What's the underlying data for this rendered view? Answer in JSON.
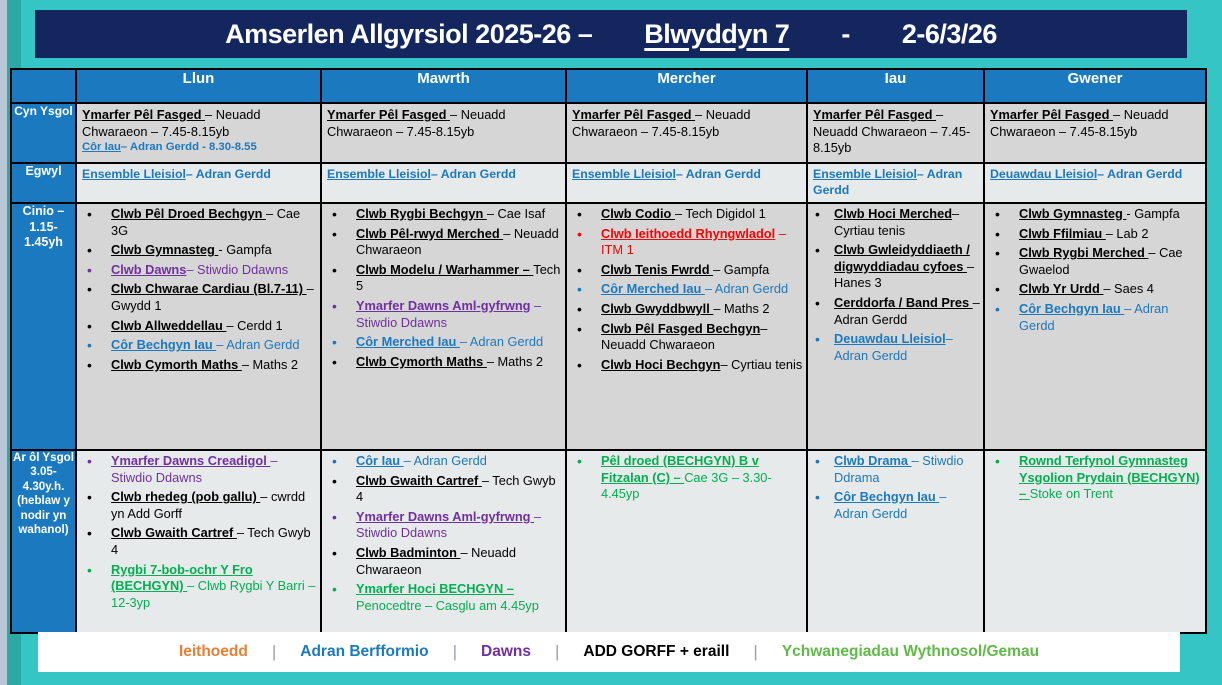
{
  "title": {
    "main": "Amserlen Allgyrsiol 2025-26 –",
    "group": "Blwyddyn 7",
    "separator": "-",
    "week": "2-6/3/26"
  },
  "days": [
    "Llun",
    "Mawrth",
    "Mercher",
    "Iau",
    "Gwener"
  ],
  "colors": {
    "black": "#000000",
    "blue": "#1b79c0",
    "purple": "#7030a0",
    "red": "#ff0000",
    "green": "#00b050",
    "header_blue": "#1b79c0",
    "title_navy": "#13265e",
    "teal_background": "#35c5c5",
    "band_dark": "#d6d6d6",
    "band_light": "#e7eaea",
    "legend_orange": "#ed7d31",
    "legend_green": "#5fbb46"
  },
  "rows": [
    {
      "label": "Cyn Ysgol",
      "kind": "plain",
      "compact": false,
      "cells": [
        [
          {
            "c": "black",
            "head": "Ymarfer Pêl Fasged ",
            "rest": "– Neuadd Chwaraeon – 7.45-8.15yb"
          },
          {
            "c": "blue",
            "head": "Côr Iau",
            "rest": "– Adran Gerdd - 8.30-8.55",
            "small": true
          }
        ],
        [
          {
            "c": "black",
            "head": "Ymarfer Pêl Fasged ",
            "rest": "– Neuadd Chwaraeon – 7.45-8.15yb"
          }
        ],
        [
          {
            "c": "black",
            "head": "Ymarfer Pêl Fasged ",
            "rest": "– Neuadd Chwaraeon – 7.45-8.15yb"
          }
        ],
        [
          {
            "c": "black",
            "head": "Ymarfer Pêl Fasged ",
            "rest": "– Neuadd Chwaraeon – 7.45-8.15yb"
          }
        ],
        [
          {
            "c": "black",
            "head": "Ymarfer Pêl Fasged ",
            "rest": "– Neuadd Chwaraeon – 7.45-8.15yb"
          }
        ]
      ]
    },
    {
      "label": "Egwyl",
      "kind": "plain",
      "compact": true,
      "cells": [
        [
          {
            "c": "blue",
            "head": "Ensemble Lleisiol",
            "rest": "– Adran Gerdd"
          }
        ],
        [
          {
            "c": "blue",
            "head": "Ensemble Lleisiol",
            "rest": "– Adran Gerdd"
          }
        ],
        [
          {
            "c": "blue",
            "head": "Ensemble Lleisiol",
            "rest": "– Adran Gerdd"
          }
        ],
        [
          {
            "c": "blue",
            "head": "Ensemble Lleisiol",
            "rest": "– Adran Gerdd"
          }
        ],
        [
          {
            "c": "blue",
            "head": "Deuawdau Lleisiol",
            "rest": "– Adran Gerdd"
          }
        ]
      ]
    },
    {
      "label": "Cinio – 1.15-1.45yh",
      "kind": "bullets",
      "compact": false,
      "cells": [
        [
          {
            "c": "black",
            "head": "Clwb Pêl Droed Bechgyn ",
            "rest": "– Cae 3G"
          },
          {
            "c": "black",
            "head": "Clwb Gymnasteg ",
            "rest": "- Gampfa"
          },
          {
            "c": "purple",
            "head": "Clwb Dawns",
            "rest": "– Stiwdio Ddawns"
          },
          {
            "c": "black",
            "head": "Clwb Chwarae Cardiau (Bl.7-11) ",
            "rest": "– Gwydd 1"
          },
          {
            "c": "black",
            "head": "Clwb Allweddellau ",
            "rest": "– Cerdd 1"
          },
          {
            "c": "blue",
            "head": "Côr Bechgyn Iau ",
            "rest": "– Adran Gerdd"
          },
          {
            "c": "black",
            "head": "Clwb Cymorth Maths ",
            "rest": "– Maths 2"
          }
        ],
        [
          {
            "c": "black",
            "head": "Clwb Rygbi Bechgyn ",
            "rest": "– Cae Isaf"
          },
          {
            "c": "black",
            "head": "Clwb Pêl-rwyd Merched ",
            "rest": "– Neuadd Chwaraeon"
          },
          {
            "c": "black",
            "head": "Clwb Modelu / Warhammer – ",
            "rest": "Tech 5"
          },
          {
            "c": "purple",
            "head": "Ymarfer Dawns Aml-gyfrwng",
            "rest": " – Stiwdio Ddawns"
          },
          {
            "c": "blue",
            "head": "Côr Merched Iau ",
            "rest": "– Adran Gerdd"
          },
          {
            "c": "black",
            "head": "Clwb Cymorth Maths ",
            "rest": "– Maths 2"
          }
        ],
        [
          {
            "c": "black",
            "head": "Clwb Codio ",
            "rest": "– Tech Digidol 1"
          },
          {
            "c": "red",
            "head": "Clwb Ieithoedd Rhyngwladol",
            "rest": " – ITM 1"
          },
          {
            "c": "black",
            "head": "Clwb Tenis Fwrdd ",
            "rest": "– Gampfa"
          },
          {
            "c": "blue",
            "head": "Côr Merched Iau ",
            "rest": "– Adran Gerdd"
          },
          {
            "c": "black",
            "head": "Clwb Gwyddbwyll ",
            "rest": "– Maths 2"
          },
          {
            "c": "black",
            "head": "Clwb Pêl Fasged Bechgyn",
            "rest": "– Neuadd Chwaraeon"
          },
          {
            "c": "black",
            "head": "Clwb Hoci Bechgyn",
            "rest": "– Cyrtiau tenis"
          }
        ],
        [
          {
            "c": "black",
            "head": "Clwb Hoci Merched",
            "rest": "– Cyrtiau tenis"
          },
          {
            "c": "black",
            "head": "Clwb Gwleidyddiaeth / digwyddiadau cyfoes ",
            "rest": "– Hanes 3"
          },
          {
            "c": "black",
            "head": "Cerddorfa / Band Pres ",
            "rest": "– Adran Gerdd"
          },
          {
            "c": "blue",
            "head": "Deuawdau Lleisiol",
            "rest": "– Adran Gerdd"
          }
        ],
        [
          {
            "c": "black",
            "head": "Clwb Gymnasteg ",
            "rest": "- Gampfa"
          },
          {
            "c": "black",
            "head": "Clwb Ffilmiau ",
            "rest": "– Lab 2"
          },
          {
            "c": "black",
            "head": "Clwb Rygbi Merched ",
            "rest": "– Cae Gwaelod"
          },
          {
            "c": "black",
            "head": "Clwb Yr Urdd ",
            "rest": "– Saes 4"
          },
          {
            "c": "blue",
            "head": "Côr Bechgyn Iau ",
            "rest": "– Adran Gerdd"
          }
        ]
      ]
    },
    {
      "label": "Ar ôl Ysgol 3.05-4.30y.h. (heblaw y nodir yn wahanol)",
      "kind": "bullets",
      "compact": false,
      "cells": [
        [
          {
            "c": "purple",
            "head": "Ymarfer Dawns Creadigol ",
            "rest": "– Stiwdio Ddawns"
          },
          {
            "c": "black",
            "head": "Clwb rhedeg (pob gallu) ",
            "rest": "– cwrdd yn Add Gorff"
          },
          {
            "c": "black",
            "head": "Clwb Gwaith Cartref ",
            "rest": "– Tech Gwyb 4"
          },
          {
            "c": "green",
            "head": "Rygbi 7-bob-ochr Y Fro (BECHGYN) ",
            "rest": "– Clwb Rygbi Y Barri – 12-3yp"
          }
        ],
        [
          {
            "c": "blue",
            "head": "Côr Iau ",
            "rest": "– Adran Gerdd"
          },
          {
            "c": "black",
            "head": "Clwb Gwaith Cartref ",
            "rest": "– Tech Gwyb 4"
          },
          {
            "c": "purple",
            "head": "Ymarfer Dawns Aml-gyfrwng ",
            "rest": "– Stiwdio Ddawns"
          },
          {
            "c": "black",
            "head": "Clwb Badminton ",
            "rest": "– Neuadd Chwaraeon"
          },
          {
            "c": "green",
            "head": "Ymarfer Hoci BECHGYN – ",
            "rest": "Penocedtre – Casglu am 4.45yp"
          }
        ],
        [
          {
            "c": "green",
            "head": "Pêl droed (BECHGYN) B v Fitzalan (C) – ",
            "rest": "Cae 3G – 3.30-4.45yp"
          }
        ],
        [
          {
            "c": "blue",
            "head": "Clwb Drama ",
            "rest": "– Stiwdio Ddrama"
          },
          {
            "c": "blue",
            "head": "Côr Bechgyn Iau ",
            "rest": "– Adran Gerdd"
          }
        ],
        [
          {
            "c": "green",
            "head": "Rownd Terfynol Gymnasteg Ysgolion Prydain (BECHGYN) – ",
            "rest": "Stoke on Trent"
          }
        ]
      ]
    }
  ],
  "legend": {
    "divider": "|",
    "items": [
      {
        "label": "Ieithoedd",
        "color": "#ed7d31"
      },
      {
        "label": "Adran Berfformio",
        "color": "#1b79c0"
      },
      {
        "label": "Dawns",
        "color": "#7030a0"
      },
      {
        "label": "ADD GORFF + eraill",
        "color": "#000000"
      },
      {
        "label": "Ychwanegiadau Wythnosol/Gemau",
        "color": "#5fbb46"
      }
    ]
  }
}
